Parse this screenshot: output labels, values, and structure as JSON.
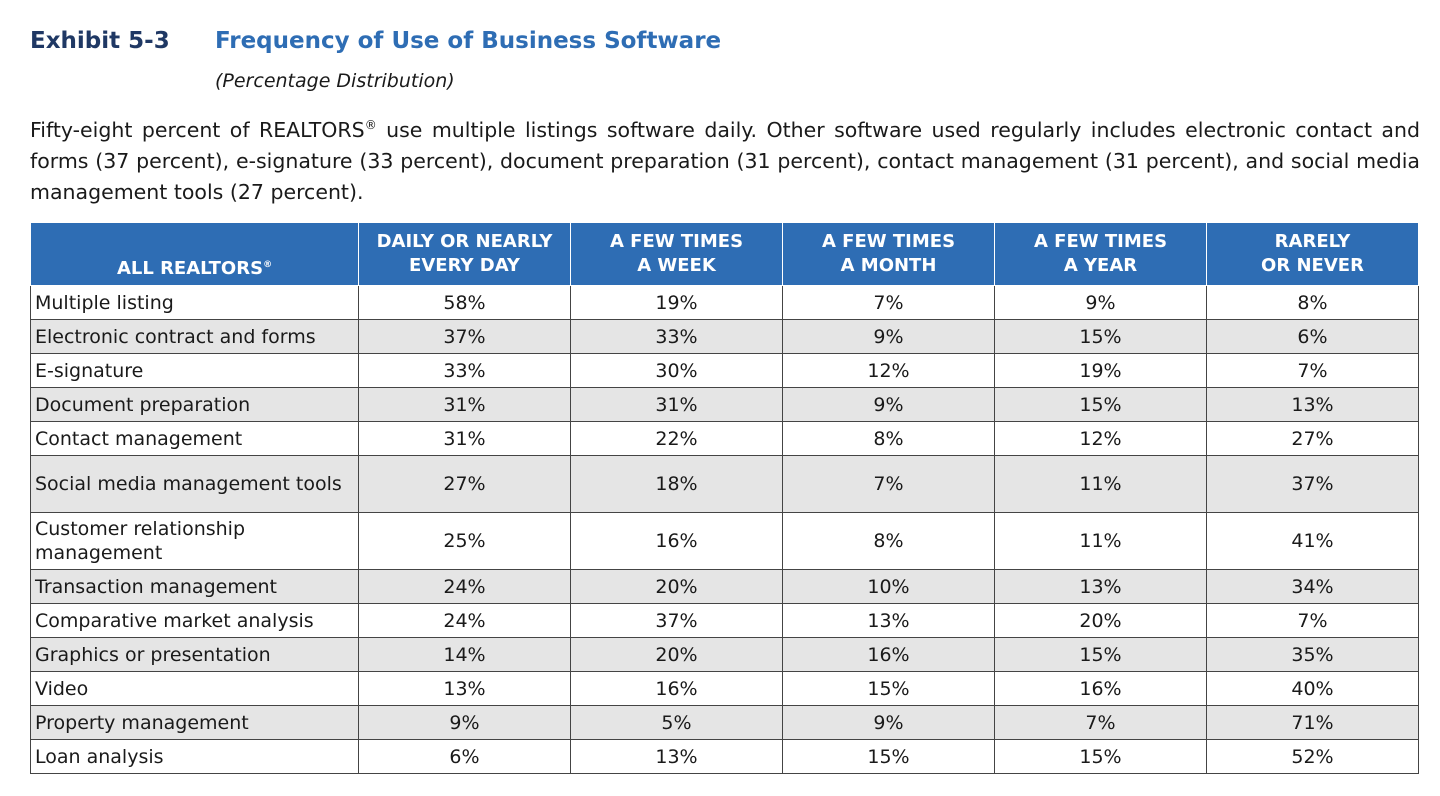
{
  "header": {
    "exhibit": "Exhibit 5-3",
    "title": "Frequency of Use of Business Software",
    "subtitle": "(Percentage Distribution)"
  },
  "description": {
    "part1": "Fifty-eight percent of REALTORS",
    "mark": "®",
    "part2": " use multiple listings software daily. Other software used regularly includes electronic contact and forms (37 percent), e-signature (33 percent), document preparation (31 percent), contact management (31 percent), and social media management tools (27 percent)."
  },
  "table": {
    "corner_label": "ALL REALTORS",
    "corner_mark": "®",
    "columns": [
      {
        "line1": "DAILY OR NEARLY",
        "line2": "EVERY DAY"
      },
      {
        "line1": "A FEW TIMES",
        "line2": "A WEEK"
      },
      {
        "line1": "A FEW TIMES",
        "line2": "A MONTH"
      },
      {
        "line1": "A FEW TIMES",
        "line2": "A YEAR"
      },
      {
        "line1": "RARELY",
        "line2": "OR NEVER"
      }
    ],
    "rows": [
      {
        "label": "Multiple listing",
        "values": [
          "58%",
          "19%",
          "7%",
          "9%",
          "8%"
        ]
      },
      {
        "label": "Electronic contract and forms",
        "values": [
          "37%",
          "33%",
          "9%",
          "15%",
          "6%"
        ]
      },
      {
        "label": "E-signature",
        "values": [
          "33%",
          "30%",
          "12%",
          "19%",
          "7%"
        ]
      },
      {
        "label": "Document preparation",
        "values": [
          "31%",
          "31%",
          "9%",
          "15%",
          "13%"
        ]
      },
      {
        "label": "Contact management",
        "values": [
          "31%",
          "22%",
          "8%",
          "12%",
          "27%"
        ]
      },
      {
        "label": "Social media management tools",
        "values": [
          "27%",
          "18%",
          "7%",
          "11%",
          "37%"
        ]
      },
      {
        "label": "Customer relationship management",
        "values": [
          "25%",
          "16%",
          "8%",
          "11%",
          "41%"
        ]
      },
      {
        "label": "Transaction management",
        "values": [
          "24%",
          "20%",
          "10%",
          "13%",
          "34%"
        ]
      },
      {
        "label": "Comparative market analysis",
        "values": [
          "24%",
          "37%",
          "13%",
          "20%",
          "7%"
        ]
      },
      {
        "label": "Graphics or presentation",
        "values": [
          "14%",
          "20%",
          "16%",
          "15%",
          "35%"
        ]
      },
      {
        "label": "Video",
        "values": [
          "13%",
          "16%",
          "15%",
          "16%",
          "40%"
        ]
      },
      {
        "label": "Property management",
        "values": [
          "9%",
          "5%",
          "9%",
          "7%",
          "71%"
        ]
      },
      {
        "label": "Loan analysis",
        "values": [
          "6%",
          "13%",
          "15%",
          "15%",
          "52%"
        ]
      }
    ]
  }
}
